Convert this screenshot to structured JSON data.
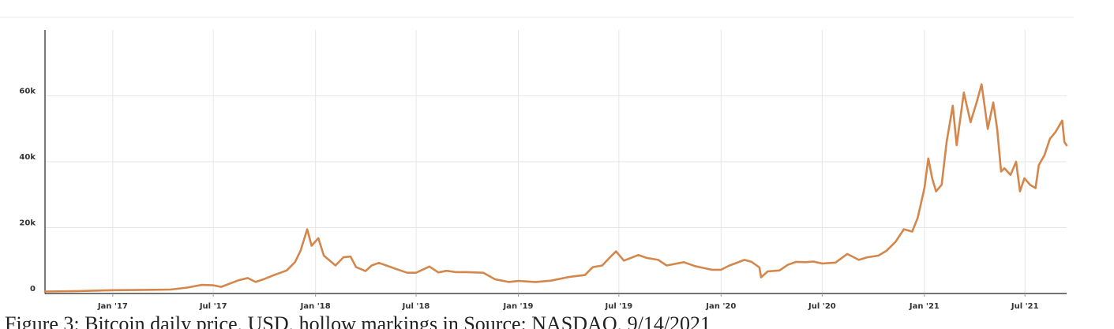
{
  "chart_data": {
    "type": "line",
    "title": "",
    "xlabel": "",
    "ylabel": "",
    "x_range": [
      "2016-09-01",
      "2021-09-14"
    ],
    "ylim": [
      0,
      80000
    ],
    "x_ticks": [
      {
        "date": "2017-01-01",
        "label": "Jan '17"
      },
      {
        "date": "2017-07-01",
        "label": "Jul '17"
      },
      {
        "date": "2018-01-01",
        "label": "Jan '18"
      },
      {
        "date": "2018-07-01",
        "label": "Jul '18"
      },
      {
        "date": "2019-01-01",
        "label": "Jan '19"
      },
      {
        "date": "2019-07-01",
        "label": "Jul '19"
      },
      {
        "date": "2020-01-01",
        "label": "Jan '20"
      },
      {
        "date": "2020-07-01",
        "label": "Jul '20"
      },
      {
        "date": "2021-01-01",
        "label": "Jan '21"
      },
      {
        "date": "2021-07-01",
        "label": "Jul '21"
      }
    ],
    "y_ticks": [
      {
        "value": 0,
        "label": "0"
      },
      {
        "value": 20000,
        "label": "20k"
      },
      {
        "value": 40000,
        "label": "40k"
      },
      {
        "value": 60000,
        "label": "60k"
      }
    ],
    "grid": true,
    "line_color": "#d4874c",
    "series": [
      {
        "x": [
          "2016-09-01",
          "2016-11-01",
          "2017-01-01",
          "2017-03-01",
          "2017-04-15",
          "2017-05-15",
          "2017-06-10",
          "2017-07-01",
          "2017-07-15",
          "2017-08-15",
          "2017-09-01",
          "2017-09-15",
          "2017-10-01",
          "2017-10-20",
          "2017-11-10",
          "2017-11-25",
          "2017-12-05",
          "2017-12-17",
          "2017-12-25",
          "2018-01-06",
          "2018-01-16",
          "2018-02-06",
          "2018-02-20",
          "2018-03-05",
          "2018-03-15",
          "2018-04-01",
          "2018-04-12",
          "2018-04-25",
          "2018-05-10",
          "2018-05-25",
          "2018-06-15",
          "2018-07-01",
          "2018-07-25",
          "2018-08-10",
          "2018-08-25",
          "2018-09-10",
          "2018-10-01",
          "2018-10-30",
          "2018-11-20",
          "2018-12-15",
          "2019-01-01",
          "2019-02-01",
          "2019-03-01",
          "2019-04-02",
          "2019-05-01",
          "2019-05-15",
          "2019-06-01",
          "2019-06-15",
          "2019-06-26",
          "2019-07-10",
          "2019-07-20",
          "2019-08-05",
          "2019-08-20",
          "2019-09-10",
          "2019-09-25",
          "2019-10-26",
          "2019-11-15",
          "2019-12-15",
          "2020-01-01",
          "2020-01-15",
          "2020-02-12",
          "2020-02-25",
          "2020-03-10",
          "2020-03-13",
          "2020-03-25",
          "2020-04-15",
          "2020-04-30",
          "2020-05-15",
          "2020-06-01",
          "2020-06-15",
          "2020-07-01",
          "2020-07-25",
          "2020-08-15",
          "2020-09-05",
          "2020-09-20",
          "2020-10-10",
          "2020-10-25",
          "2020-11-10",
          "2020-11-25",
          "2020-12-10",
          "2020-12-20",
          "2021-01-01",
          "2021-01-08",
          "2021-01-15",
          "2021-01-22",
          "2021-02-01",
          "2021-02-10",
          "2021-02-21",
          "2021-02-28",
          "2021-03-13",
          "2021-03-25",
          "2021-04-05",
          "2021-04-14",
          "2021-04-25",
          "2021-05-05",
          "2021-05-12",
          "2021-05-19",
          "2021-05-25",
          "2021-06-05",
          "2021-06-15",
          "2021-06-22",
          "2021-06-30",
          "2021-07-10",
          "2021-07-20",
          "2021-07-26",
          "2021-08-05",
          "2021-08-15",
          "2021-08-25",
          "2021-09-06",
          "2021-09-10",
          "2021-09-14"
        ],
        "y": [
          600,
          750,
          1000,
          1100,
          1200,
          1800,
          2600,
          2500,
          2000,
          4000,
          4700,
          3500,
          4400,
          5700,
          7000,
          9500,
          13000,
          19500,
          14500,
          16800,
          11500,
          8500,
          11000,
          11200,
          8000,
          6800,
          8500,
          9300,
          8400,
          7500,
          6300,
          6300,
          8200,
          6400,
          6900,
          6500,
          6500,
          6300,
          4300,
          3500,
          3800,
          3500,
          3900,
          5000,
          5600,
          8000,
          8500,
          11000,
          12800,
          10000,
          10600,
          11700,
          10800,
          10200,
          8500,
          9500,
          8300,
          7200,
          7200,
          8400,
          10200,
          9600,
          7900,
          4900,
          6700,
          7000,
          8700,
          9600,
          9500,
          9700,
          9100,
          9400,
          12000,
          10200,
          11000,
          11500,
          13000,
          15700,
          19500,
          18800,
          23000,
          32000,
          41000,
          35000,
          31000,
          33000,
          46000,
          57000,
          45000,
          61000,
          52000,
          58000,
          63500,
          50000,
          58000,
          50000,
          37000,
          38000,
          36000,
          40000,
          31000,
          35000,
          33000,
          32000,
          39000,
          42000,
          47000,
          49000,
          52500,
          46000,
          45000
        ]
      }
    ]
  },
  "caption": {
    "text": "Figure 3: Bitcoin daily price, USD, hollow markings in Source: NASDAQ, 9/14/2021"
  }
}
